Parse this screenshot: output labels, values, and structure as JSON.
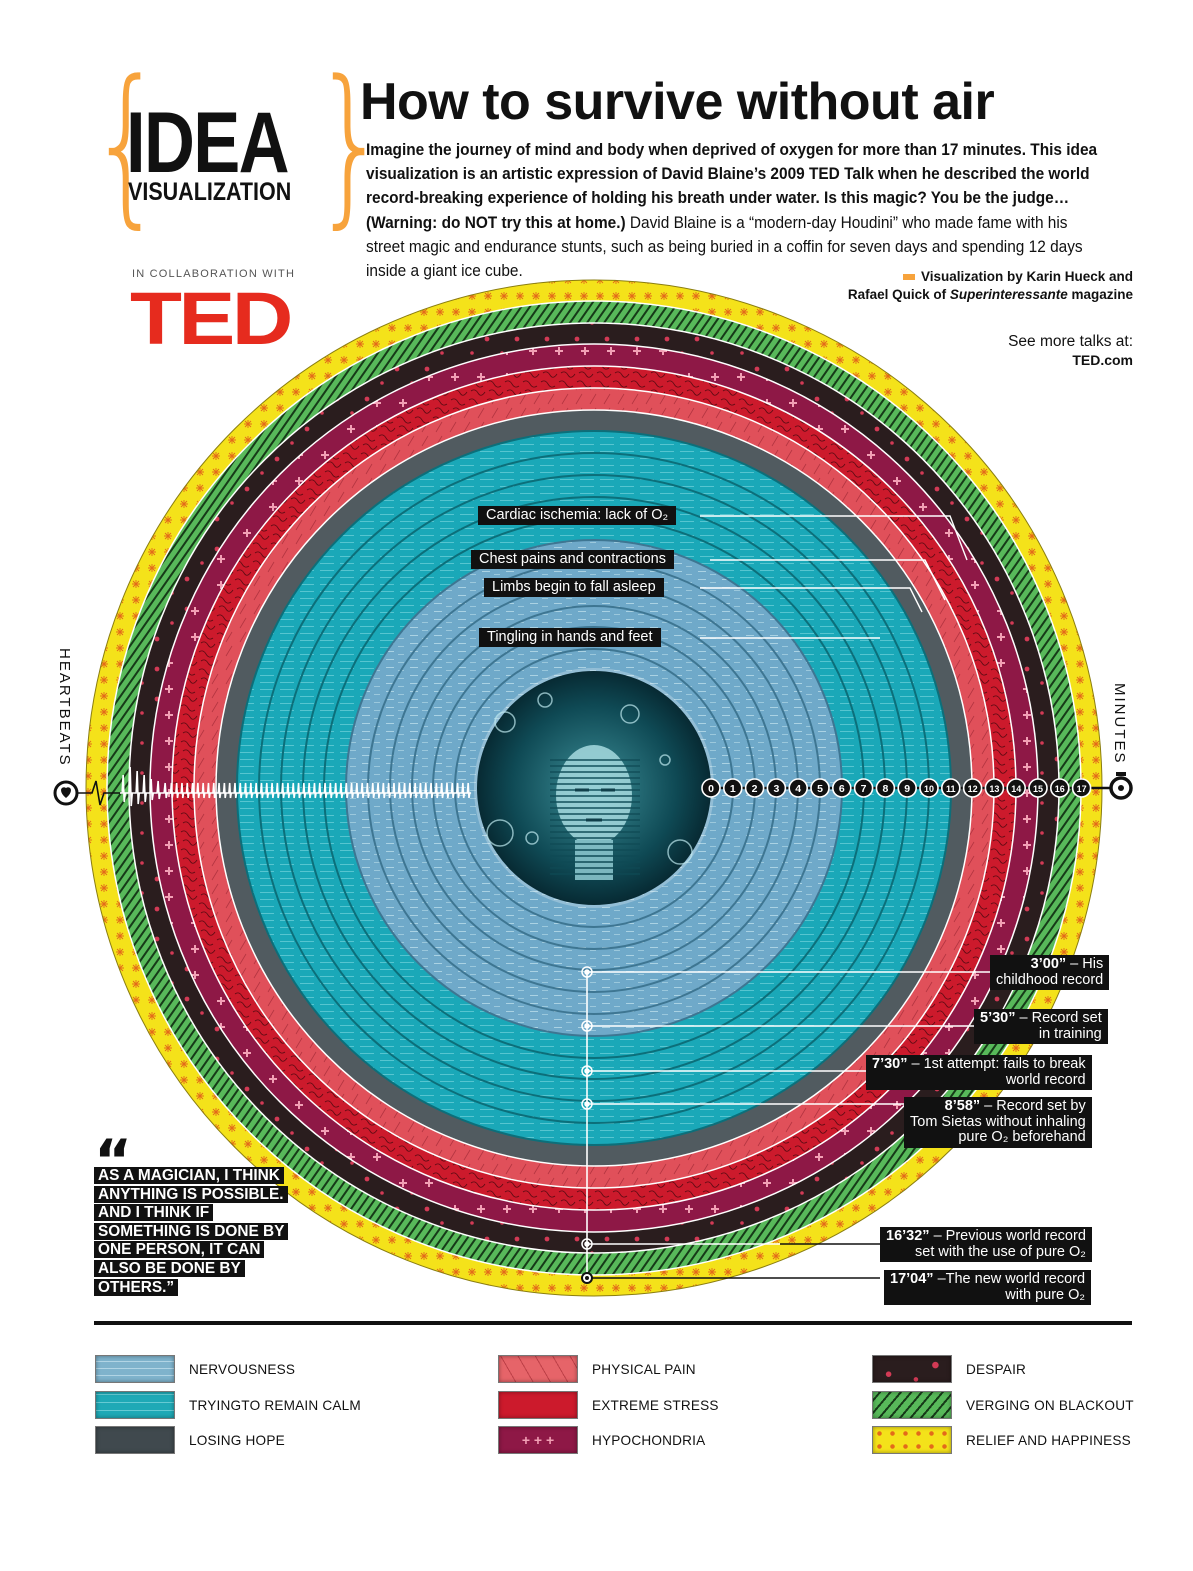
{
  "header": {
    "logo_word": "IDEA",
    "logo_sub": "VISUALIZATION",
    "brace_open": "{",
    "brace_close": "}",
    "collab_label": "IN COLLABORATION WITH",
    "ted_logo": "TED",
    "title": "How to survive without air",
    "intro_bold": "Imagine the journey of mind and body when deprived of oxygen for more than 17 minutes. This idea visualization is an artistic expression of David Blaine’s 2009 TED Talk when he described the world record-breaking experience of holding his breath under water. Is this magic? You be the judge… (Warning: do NOT try this at home.)",
    "intro_regular": " David Blaine is a “modern-day Houdini” who made fame with his street magic and endurance stunts, such as being buried in a coffin for seven days and spending 12 days inside a giant ice cube.",
    "credit_line1": "Visualization by Karin Hueck and",
    "credit_line2_a": "Rafael Quick of ",
    "credit_line2_b": "Superinteressante",
    "credit_line2_c": " magazine",
    "more_label": "See more talks at:",
    "more_link": "TED.com"
  },
  "axes": {
    "left_label": "HEARTBEATS",
    "right_label": "MINUTES",
    "left_icon": "heart-monitor-icon",
    "right_icon": "stopwatch-icon"
  },
  "colors": {
    "accent_orange": "#f7a33c",
    "ted_red": "#e62b1e",
    "nervousness": "#6fa9c9",
    "calm": "#1aa8b8",
    "losing_hope": "#515b60",
    "physical_pain": "#e0505a",
    "extreme_stress": "#cc1a2c",
    "hypochondria": "#8e1846",
    "despair": "#2a1d1e",
    "blackout": "#58b95a",
    "relief": "#f4e21a"
  },
  "chart_data": {
    "type": "radial-rings",
    "title": "How to survive without air",
    "axis": "Minutes (0–17), radial from center",
    "minute_ticks": [
      "0",
      "1",
      "2",
      "3",
      "4",
      "5",
      "6",
      "7",
      "8",
      "9",
      "10",
      "11",
      "12",
      "13",
      "14",
      "15",
      "16",
      "17"
    ],
    "segments": [
      {
        "emotion": "NERVOUSNESS",
        "from": 0,
        "to": 5
      },
      {
        "emotion": "TRYING TO REMAIN CALM",
        "from": 5,
        "to": 10
      },
      {
        "emotion": "LOSING HOPE",
        "from": 10,
        "to": 11
      },
      {
        "emotion": "PHYSICAL PAIN",
        "from": 11,
        "to": 12
      },
      {
        "emotion": "EXTREME STRESS",
        "from": 12,
        "to": 13
      },
      {
        "emotion": "HYPOCHONDRIA",
        "from": 13,
        "to": 14
      },
      {
        "emotion": "DESPAIR",
        "from": 14,
        "to": 15
      },
      {
        "emotion": "VERGING ON BLACKOUT",
        "from": 15,
        "to": 16
      },
      {
        "emotion": "RELIEF AND HAPPINESS",
        "from": 16,
        "to": 17.1
      }
    ],
    "body_events": [
      {
        "text": "Tingling in hands and feet",
        "minute": 3
      },
      {
        "text": "Limbs begin to fall asleep",
        "minute": 5.5
      },
      {
        "text": "Chest pains and contractions",
        "minute": 7
      },
      {
        "text": "Cardiac ischemia: lack of O₂",
        "minute": 10
      }
    ],
    "records": [
      {
        "time": "3’00”",
        "minutes": 3.0,
        "text": "His childhood record"
      },
      {
        "time": "5’30”",
        "minutes": 5.5,
        "text": "Record set in training"
      },
      {
        "time": "7’30”",
        "minutes": 7.5,
        "text": "1st attempt: fails to break world record"
      },
      {
        "time": "8’58”",
        "minutes": 8.97,
        "text": "Record set by Tom Sietas without inhaling pure O₂ beforehand"
      },
      {
        "time": "16’32”",
        "minutes": 16.53,
        "text": "Previous world record set with the use of pure O₂"
      },
      {
        "time": "17’04”",
        "minutes": 17.07,
        "text": "The new world record with pure O₂"
      }
    ]
  },
  "labels": {
    "body": [
      {
        "text": "Cardiac ischemia: lack of O₂"
      },
      {
        "text": "Chest pains and contractions"
      },
      {
        "text": "Limbs begin to fall asleep"
      },
      {
        "text": "Tingling in hands and feet"
      }
    ],
    "records": [
      {
        "time": "3’00”",
        "l1": " – His",
        "l2": "childhood record"
      },
      {
        "time": "5’30”",
        "l1": " – Record set",
        "l2": "in training"
      },
      {
        "time": "7’30”",
        "l1": " – 1st attempt: fails to break",
        "l2": "world record"
      },
      {
        "time": "8’58”",
        "l1": " – Record set by",
        "l2": "Tom Sietas without inhaling",
        "l3": "pure O₂ beforehand"
      },
      {
        "time": "16’32”",
        "l1": " – Previous world record",
        "l2": "set with the use of pure O₂"
      },
      {
        "time": "17’04”",
        "l1": " –The new world record",
        "l2": "with pure O₂"
      }
    ]
  },
  "quote": {
    "mark": "“",
    "text": "AS A MAGICIAN, I THINK ANYTHING IS POSSIBLE. AND I THINK IF SOMETHING IS DONE BY ONE PERSON, IT CAN ALSO BE DONE BY OTHERS.”"
  },
  "legend": [
    {
      "label": "NERVOUSNESS"
    },
    {
      "label": "TRYINGTO REMAIN CALM"
    },
    {
      "label": "LOSING HOPE"
    },
    {
      "label": "PHYSICAL PAIN"
    },
    {
      "label": "EXTREME STRESS"
    },
    {
      "label": "HYPOCHONDRIA"
    },
    {
      "label": "DESPAIR"
    },
    {
      "label": "VERGING ON BLACKOUT"
    },
    {
      "label": "RELIEF AND HAPPINESS"
    }
  ]
}
